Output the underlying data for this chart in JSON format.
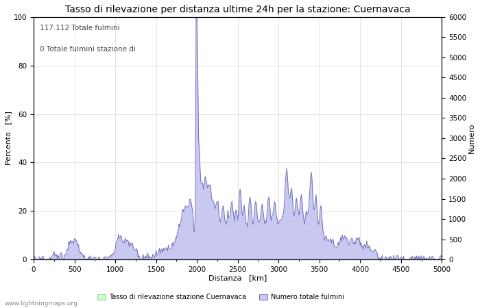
{
  "title": "Tasso di rilevazione per distanza ultime 24h per la stazione: Cuernavaca",
  "annotation_line1": "117.112 Totale fulmini",
  "annotation_line2": "0 Totale fulmini stazione di",
  "xlabel": "Distanza   [km]",
  "ylabel_left": "Percento   [%]",
  "ylabel_right": "Numero",
  "xlim": [
    0,
    5000
  ],
  "ylim_left": [
    0,
    100
  ],
  "ylim_right": [
    0,
    6000
  ],
  "xticks": [
    0,
    500,
    1000,
    1500,
    2000,
    2500,
    3000,
    3500,
    4000,
    4500,
    5000
  ],
  "yticks_left": [
    0,
    20,
    40,
    60,
    80,
    100
  ],
  "yticks_right": [
    0,
    500,
    1000,
    1500,
    2000,
    2500,
    3000,
    3500,
    4000,
    4500,
    5000,
    5500,
    6000
  ],
  "legend_label_green": "Tasso di rilevazione stazione Cuernavaca",
  "legend_label_blue": "Numero totale fulmini",
  "watermark": "www.lightningmaps.org",
  "fill_color_blue": "#c8c8f0",
  "fill_color_green": "#c8ffc8",
  "line_color_blue": "#7070b8",
  "background_color": "#ffffff",
  "grid_color": "#aaaaaa",
  "title_fontsize": 10,
  "label_fontsize": 8,
  "tick_fontsize": 7.5,
  "annotation_fontsize": 7.5
}
